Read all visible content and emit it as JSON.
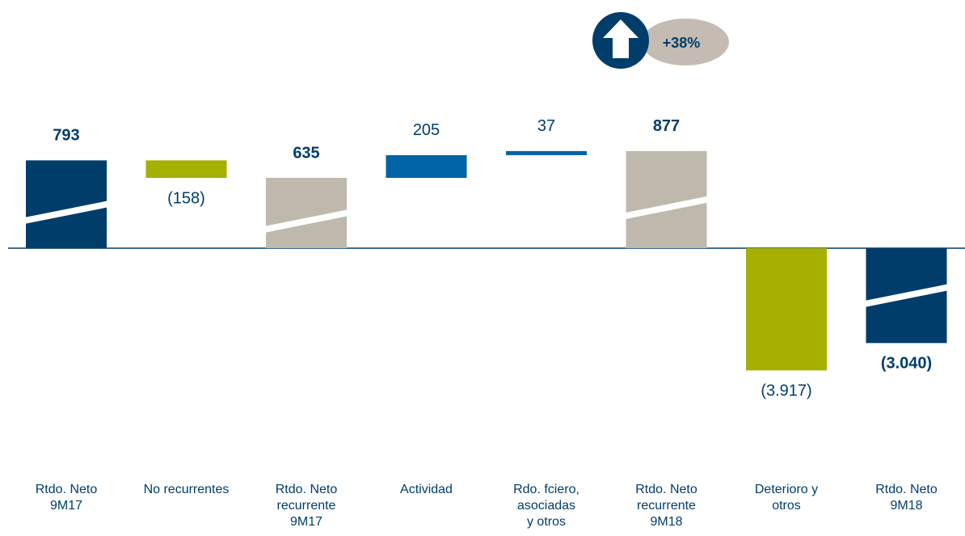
{
  "chart_data": {
    "type": "waterfall",
    "badge": "+38%",
    "categories": [
      "Rtdo. Neto\n9M17",
      "No recurrentes",
      "Rtdo. Neto\nrecurrente\n9M17",
      "Actividad",
      "Rdo. fciero,\nasociadas\ny otros",
      "Rtdo. Neto\nrecurrente\n9M18",
      "Deterioro y\notros",
      "Rtdo. Neto\n9M18"
    ],
    "values": [
      793,
      -158,
      635,
      205,
      37,
      877,
      -3917,
      -3040
    ],
    "value_labels": [
      "793",
      "(158)",
      "635",
      "205",
      "37",
      "877",
      "(3.917)",
      "(3.040)"
    ],
    "colors": [
      "#003d6b",
      "#a5b000",
      "#bfb8ad",
      "#0064a6",
      "#0064a6",
      "#bfb8ad",
      "#a5b000",
      "#003d6b"
    ]
  }
}
